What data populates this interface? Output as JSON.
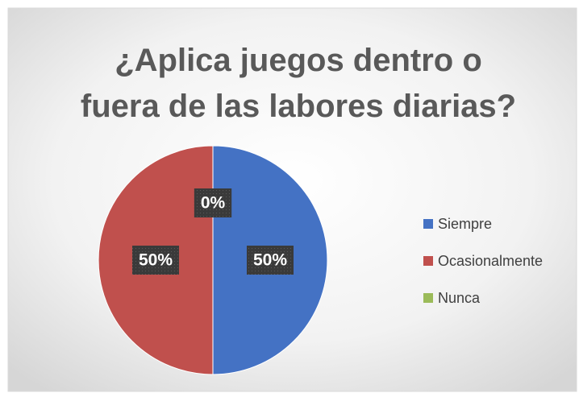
{
  "chart_data": {
    "type": "pie",
    "title": "¿Aplica juegos dentro o fuera de las labores diarias?",
    "categories": [
      "Siempre",
      "Ocasionalmente",
      "Nunca"
    ],
    "values": [
      50,
      50,
      0
    ],
    "value_labels": [
      "50%",
      "50%",
      "0%"
    ],
    "colors": [
      "#4472c4",
      "#c0504d",
      "#9bbb59"
    ],
    "legend": "right"
  }
}
